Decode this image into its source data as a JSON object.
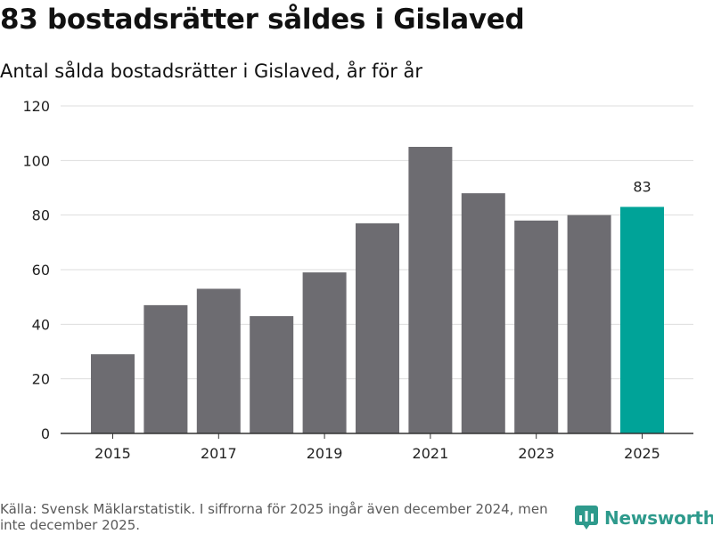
{
  "header": {
    "title": "83 bostadsrätter såldes i Gislaved",
    "subtitle": "Antal sålda bostadsrätter i Gislaved, år för år"
  },
  "footer": {
    "source": "Källa: Svensk Mäklarstatistik. I siffrorna för 2025 ingår även december 2024, men inte december 2025.",
    "brand": "Newsworthy"
  },
  "colors": {
    "bar": "#6d6c71",
    "highlight": "#00a398",
    "grid": "#dddddd",
    "axis": "#333333",
    "brand": "#2e9a8c"
  },
  "chart_data": {
    "type": "bar",
    "title": "83 bostadsrätter såldes i Gislaved",
    "subtitle": "Antal sålda bostadsrätter i Gislaved, år för år",
    "xlabel": "",
    "ylabel": "",
    "categories": [
      "2015",
      "2016",
      "2017",
      "2018",
      "2019",
      "2020",
      "2021",
      "2022",
      "2023",
      "2024",
      "2025"
    ],
    "values": [
      29,
      47,
      53,
      43,
      59,
      77,
      105,
      88,
      78,
      80,
      83
    ],
    "x_tick_labels": [
      "2015",
      "2017",
      "2019",
      "2021",
      "2023",
      "2025"
    ],
    "y_ticks": [
      0,
      20,
      40,
      60,
      80,
      100,
      120
    ],
    "ylim": [
      0,
      120
    ],
    "highlight_index": 10,
    "annotations": [
      {
        "category": "2025",
        "text": "83"
      }
    ],
    "grid": true
  }
}
